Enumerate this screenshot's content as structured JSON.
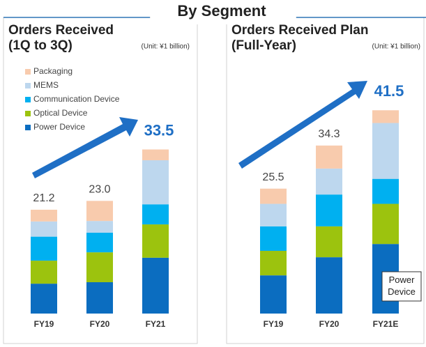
{
  "page_title": "By Segment",
  "chart_data": [
    {
      "type": "stacked-bar",
      "title": "Orders Received",
      "subtitle": "(1Q to 3Q)",
      "unit_note": "(Unit: ¥1 billion)",
      "categories": [
        "FY19",
        "FY20",
        "FY21"
      ],
      "series": [
        {
          "name": "Power Device",
          "color": "#0b6dc0",
          "values": [
            6.1,
            6.4,
            11.4
          ]
        },
        {
          "name": "Optical Device",
          "color": "#9cc30e",
          "values": [
            4.7,
            6.1,
            6.8
          ]
        },
        {
          "name": "Communication Device",
          "color": "#00b0f0",
          "values": [
            4.9,
            4.0,
            4.1
          ]
        },
        {
          "name": "MEMS",
          "color": "#bdd7ee",
          "values": [
            3.1,
            2.4,
            9.0
          ]
        },
        {
          "name": "Packaging",
          "color": "#f8cbad",
          "values": [
            2.4,
            4.1,
            2.2
          ]
        }
      ],
      "totals": [
        21.2,
        23,
        33.5
      ],
      "total_labels": [
        "21.2",
        "23.0",
        "33.5"
      ],
      "legend": "upper left"
    },
    {
      "type": "stacked-bar",
      "title": "Orders Received Plan",
      "subtitle": "(Full-Year)",
      "unit_note": "(Unit: ¥1 billion)",
      "categories": [
        "FY19",
        "FY20",
        "FY21E"
      ],
      "series": [
        {
          "color": "#0b6dc0",
          "values": [
            7.8,
            11.5,
            14.2
          ]
        },
        {
          "color": "#9cc30e",
          "values": [
            5.0,
            6.3,
            8.2
          ]
        },
        {
          "color": "#00b0f0",
          "values": [
            5.0,
            6.5,
            5.1
          ]
        },
        {
          "color": "#bdd7ee",
          "values": [
            4.6,
            5.3,
            11.4
          ]
        },
        {
          "color": "#f8cbad",
          "values": [
            3.1,
            4.7,
            2.6
          ]
        }
      ],
      "totals": [
        25.5,
        34.3,
        41.5
      ],
      "total_labels": [
        "25.5",
        "34.3",
        "41.5"
      ],
      "annotation": "Power Device"
    }
  ]
}
